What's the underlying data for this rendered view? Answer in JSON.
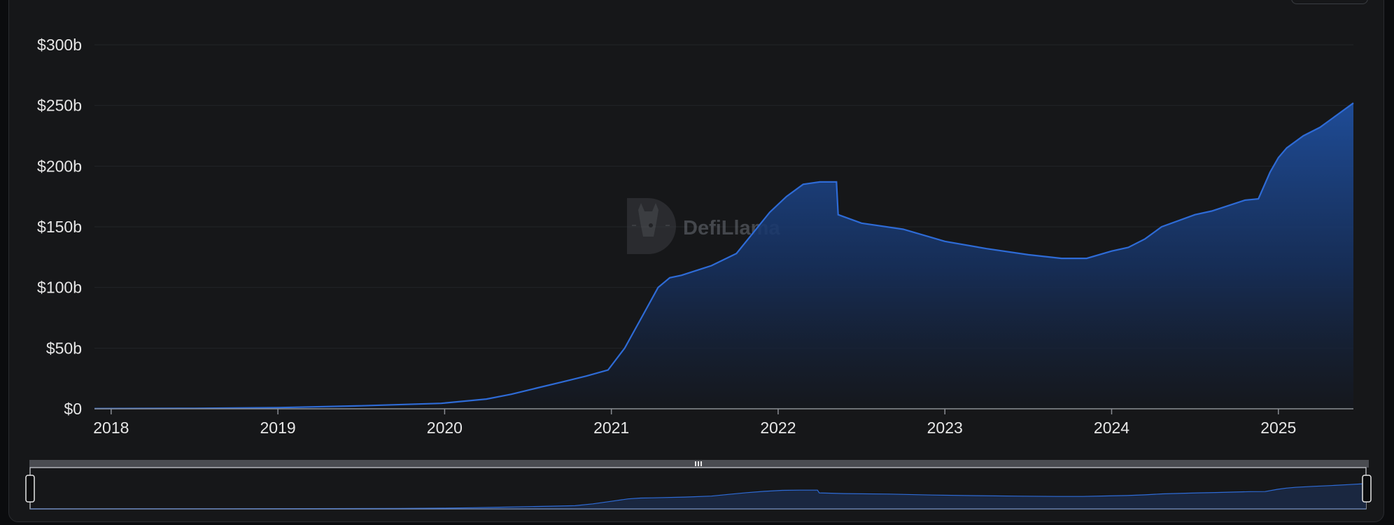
{
  "chart_data": {
    "type": "area",
    "title": "",
    "xlabel": "",
    "ylabel": "",
    "ylim": [
      0,
      300
    ],
    "y_ticks": [
      {
        "value": 0,
        "label": "$0"
      },
      {
        "value": 50,
        "label": "$50b"
      },
      {
        "value": 100,
        "label": "$100b"
      },
      {
        "value": 150,
        "label": "$150b"
      },
      {
        "value": 200,
        "label": "$200b"
      },
      {
        "value": 250,
        "label": "$250b"
      },
      {
        "value": 300,
        "label": "$300b"
      }
    ],
    "xlim": [
      2017.9,
      2025.45
    ],
    "x_ticks": [
      {
        "value": 2018,
        "label": "2018"
      },
      {
        "value": 2019,
        "label": "2019"
      },
      {
        "value": 2020,
        "label": "2020"
      },
      {
        "value": 2021,
        "label": "2021"
      },
      {
        "value": 2022,
        "label": "2022"
      },
      {
        "value": 2023,
        "label": "2023"
      },
      {
        "value": 2024,
        "label": "2024"
      },
      {
        "value": 2025,
        "label": "2025"
      }
    ],
    "grid": true,
    "series": [
      {
        "color": "#2e6bd6",
        "x": [
          2017.9,
          2018.5,
          2019.0,
          2019.5,
          2019.98,
          2020.25,
          2020.4,
          2020.55,
          2020.7,
          2020.85,
          2020.98,
          2021.08,
          2021.18,
          2021.28,
          2021.35,
          2021.42,
          2021.6,
          2021.75,
          2021.85,
          2021.95,
          2022.05,
          2022.15,
          2022.25,
          2022.35,
          2022.36,
          2022.5,
          2022.75,
          2023.0,
          2023.25,
          2023.5,
          2023.7,
          2023.85,
          2024.0,
          2024.1,
          2024.2,
          2024.3,
          2024.5,
          2024.6,
          2024.8,
          2024.88,
          2024.95,
          2025.0,
          2025.05,
          2025.15,
          2025.25,
          2025.35,
          2025.45
        ],
        "values": [
          0.2,
          0.4,
          1.0,
          2.5,
          4.5,
          8.0,
          12.0,
          17.0,
          22.0,
          27.0,
          32.0,
          50.0,
          75.0,
          100.0,
          108.0,
          110.0,
          118.0,
          128.0,
          145.0,
          162.0,
          175.0,
          185.0,
          187.0,
          187.0,
          160.0,
          153.0,
          148.0,
          138.0,
          132.0,
          127.0,
          124.0,
          124.0,
          130.0,
          133.0,
          140.0,
          150.0,
          160.0,
          163.0,
          172.0,
          173.0,
          195.0,
          207.0,
          215.0,
          225.0,
          232.0,
          242.0,
          252.0
        ]
      }
    ]
  },
  "watermark": {
    "text": "DefiLlama"
  },
  "colors": {
    "line": "#2e6bd6",
    "fill_top": "#1f4f9e",
    "background": "#161719",
    "grid": "#222428",
    "navigator_bar": "#4a4c51"
  }
}
